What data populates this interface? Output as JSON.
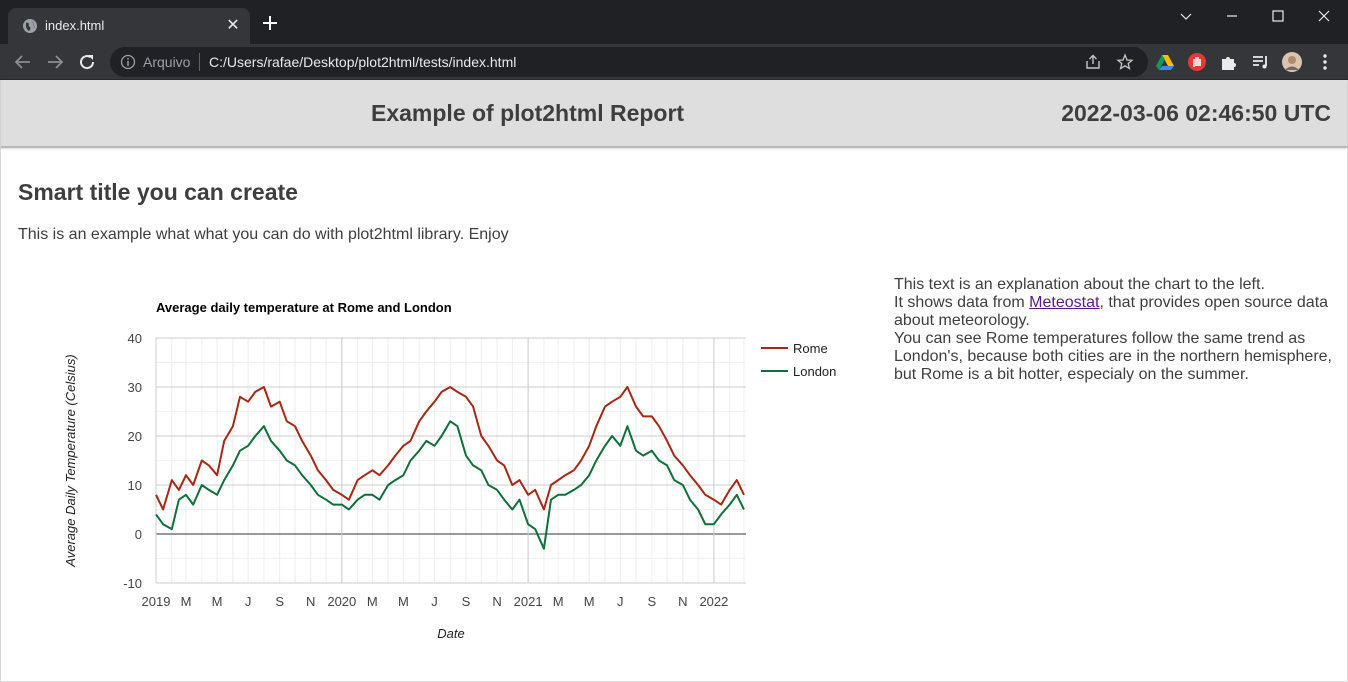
{
  "browser": {
    "tab_title": "index.html",
    "omnibox": {
      "scheme_label": "Arquivo",
      "url": "C:/Users/rafae/Desktop/plot2html/tests/index.html"
    },
    "icons": [
      "globe-icon",
      "close-icon",
      "plus-icon",
      "chevron-down-icon",
      "minimize-icon",
      "maximize-icon",
      "window-close-icon",
      "back-arrow-icon",
      "forward-arrow-icon",
      "reload-icon",
      "info-icon",
      "share-icon",
      "star-icon",
      "drive-icon",
      "hand-icon",
      "puzzle-icon",
      "media-queue-icon",
      "avatar",
      "kebab-menu-icon"
    ]
  },
  "header": {
    "title": "Example of plot2html Report",
    "timestamp": "2022-03-06 02:46:50 UTC"
  },
  "main": {
    "section_title": "Smart title you can create",
    "intro": "This is an example what what you can do with plot2html library. Enjoy",
    "explanation": {
      "line1": "This text is an explanation about the chart to the left.",
      "line2_prefix": "It shows data from ",
      "link_text": "Meteostat",
      "line2_suffix": ", that provides open source data about meteorology.",
      "line3": "You can see Rome temperatures follow the same trend as London's, because both cities are in the northern hemisphere, but Rome is a bit hotter, especialy on the summer."
    }
  },
  "chart_data": {
    "type": "line",
    "title": "Average daily temperature at Rome and London",
    "xlabel": "Date",
    "ylabel": "Average Daily Temperature (Celsius)",
    "ylim": [
      -10,
      40
    ],
    "yticks": [
      -10,
      0,
      10,
      20,
      30,
      40
    ],
    "xlim": [
      "2019-01-01",
      "2022-03-05"
    ],
    "xtick_labels": [
      "2019",
      "M",
      "M",
      "J",
      "S",
      "N",
      "2020",
      "M",
      "M",
      "J",
      "S",
      "N",
      "2021",
      "M",
      "M",
      "J",
      "S",
      "N",
      "2022"
    ],
    "xtick_dates": [
      "2019-01-01",
      "2019-03-01",
      "2019-05-01",
      "2019-07-01",
      "2019-09-01",
      "2019-11-01",
      "2020-01-01",
      "2020-03-01",
      "2020-05-01",
      "2020-07-01",
      "2020-09-01",
      "2020-11-01",
      "2021-01-01",
      "2021-03-01",
      "2021-05-01",
      "2021-07-01",
      "2021-09-01",
      "2021-11-01",
      "2022-01-01"
    ],
    "grid": true,
    "legend": "right",
    "series": [
      {
        "name": "Rome",
        "color": "#a52714",
        "x": [
          "2019-01-01",
          "2019-01-15",
          "2019-02-01",
          "2019-02-15",
          "2019-03-01",
          "2019-03-15",
          "2019-04-01",
          "2019-04-15",
          "2019-05-01",
          "2019-05-15",
          "2019-06-01",
          "2019-06-15",
          "2019-07-01",
          "2019-07-15",
          "2019-08-01",
          "2019-08-15",
          "2019-09-01",
          "2019-09-15",
          "2019-10-01",
          "2019-10-15",
          "2019-11-01",
          "2019-11-15",
          "2019-12-01",
          "2019-12-15",
          "2020-01-01",
          "2020-01-15",
          "2020-02-01",
          "2020-02-15",
          "2020-03-01",
          "2020-03-15",
          "2020-04-01",
          "2020-04-15",
          "2020-05-01",
          "2020-05-15",
          "2020-06-01",
          "2020-06-15",
          "2020-07-01",
          "2020-07-15",
          "2020-08-01",
          "2020-08-15",
          "2020-09-01",
          "2020-09-15",
          "2020-10-01",
          "2020-10-15",
          "2020-11-01",
          "2020-11-15",
          "2020-12-01",
          "2020-12-15",
          "2021-01-01",
          "2021-01-15",
          "2021-02-01",
          "2021-02-15",
          "2021-03-01",
          "2021-03-15",
          "2021-04-01",
          "2021-04-15",
          "2021-05-01",
          "2021-05-15",
          "2021-06-01",
          "2021-06-15",
          "2021-07-01",
          "2021-07-15",
          "2021-08-01",
          "2021-08-15",
          "2021-09-01",
          "2021-09-15",
          "2021-10-01",
          "2021-10-15",
          "2021-11-01",
          "2021-11-15",
          "2021-12-01",
          "2021-12-15",
          "2022-01-01",
          "2022-01-15",
          "2022-02-01",
          "2022-02-15",
          "2022-03-01"
        ],
        "values": [
          8,
          5,
          11,
          9,
          12,
          10,
          15,
          14,
          12,
          19,
          22,
          28,
          27,
          29,
          30,
          26,
          27,
          23,
          22,
          19,
          16,
          13,
          11,
          9,
          8,
          7,
          11,
          12,
          13,
          12,
          14,
          16,
          18,
          19,
          23,
          25,
          27,
          29,
          30,
          29,
          28,
          26,
          20,
          18,
          15,
          14,
          10,
          11,
          8,
          9,
          5,
          10,
          11,
          12,
          13,
          15,
          18,
          22,
          26,
          27,
          28,
          30,
          26,
          24,
          24,
          22,
          19,
          16,
          14,
          12,
          10,
          8,
          7,
          6,
          9,
          11,
          8
        ]
      },
      {
        "name": "London",
        "color": "#0f6e3a",
        "x": [
          "2019-01-01",
          "2019-01-15",
          "2019-02-01",
          "2019-02-15",
          "2019-03-01",
          "2019-03-15",
          "2019-04-01",
          "2019-04-15",
          "2019-05-01",
          "2019-05-15",
          "2019-06-01",
          "2019-06-15",
          "2019-07-01",
          "2019-07-15",
          "2019-08-01",
          "2019-08-15",
          "2019-09-01",
          "2019-09-15",
          "2019-10-01",
          "2019-10-15",
          "2019-11-01",
          "2019-11-15",
          "2019-12-01",
          "2019-12-15",
          "2020-01-01",
          "2020-01-15",
          "2020-02-01",
          "2020-02-15",
          "2020-03-01",
          "2020-03-15",
          "2020-04-01",
          "2020-04-15",
          "2020-05-01",
          "2020-05-15",
          "2020-06-01",
          "2020-06-15",
          "2020-07-01",
          "2020-07-15",
          "2020-08-01",
          "2020-08-15",
          "2020-09-01",
          "2020-09-15",
          "2020-10-01",
          "2020-10-15",
          "2020-11-01",
          "2020-11-15",
          "2020-12-01",
          "2020-12-15",
          "2021-01-01",
          "2021-01-15",
          "2021-02-01",
          "2021-02-15",
          "2021-03-01",
          "2021-03-15",
          "2021-04-01",
          "2021-04-15",
          "2021-05-01",
          "2021-05-15",
          "2021-06-01",
          "2021-06-15",
          "2021-07-01",
          "2021-07-15",
          "2021-08-01",
          "2021-08-15",
          "2021-09-01",
          "2021-09-15",
          "2021-10-01",
          "2021-10-15",
          "2021-11-01",
          "2021-11-15",
          "2021-12-01",
          "2021-12-15",
          "2022-01-01",
          "2022-01-15",
          "2022-02-01",
          "2022-02-15",
          "2022-03-01"
        ],
        "values": [
          4,
          2,
          1,
          7,
          8,
          6,
          10,
          9,
          8,
          11,
          14,
          17,
          18,
          20,
          22,
          19,
          17,
          15,
          14,
          12,
          10,
          8,
          7,
          6,
          6,
          5,
          7,
          8,
          8,
          7,
          10,
          11,
          12,
          15,
          17,
          19,
          18,
          20,
          23,
          22,
          16,
          14,
          13,
          10,
          9,
          7,
          5,
          7,
          2,
          1,
          -3,
          7,
          8,
          8,
          9,
          10,
          12,
          15,
          18,
          20,
          18,
          22,
          17,
          16,
          17,
          15,
          14,
          11,
          10,
          7,
          5,
          2,
          2,
          4,
          6,
          8,
          5
        ]
      }
    ]
  }
}
